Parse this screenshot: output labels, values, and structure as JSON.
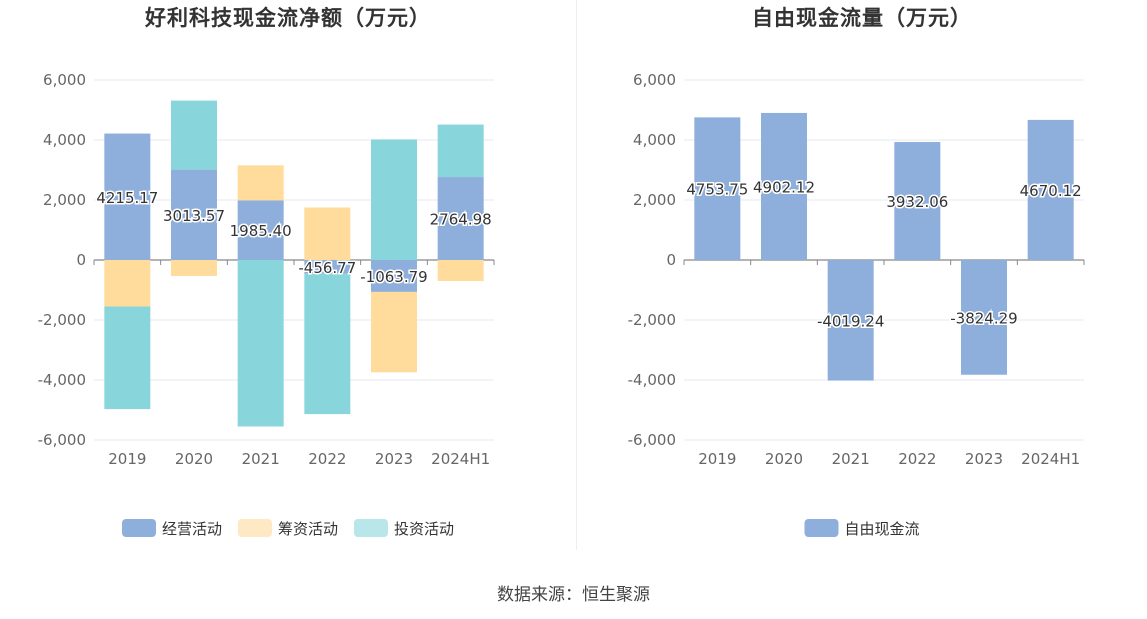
{
  "source_label": "数据来源：恒生聚源",
  "chart_data": [
    {
      "type": "bar",
      "stacked": true,
      "title": "好利科技现金流净额（万元）",
      "categories": [
        "2019",
        "2020",
        "2021",
        "2022",
        "2023",
        "2024H1"
      ],
      "ylim": [
        -6000,
        6000
      ],
      "yticks": [
        6000,
        4000,
        2000,
        0,
        -2000,
        -4000,
        -6000
      ],
      "ytick_labels": [
        "6,000",
        "4,000",
        "2,000",
        "0",
        "-2,000",
        "-4,000",
        "-6,000"
      ],
      "grid": true,
      "legend_position": "bottom",
      "series": [
        {
          "name": "经营活动",
          "color": "#8eaedb",
          "values": [
            4215.17,
            3013.57,
            1985.4,
            -456.77,
            -1063.79,
            2764.98
          ]
        },
        {
          "name": "筹资活动",
          "color": "#ffdb9c",
          "values": [
            -1550,
            -530,
            1170,
            1750,
            -2680,
            -700
          ]
        },
        {
          "name": "投资活动",
          "color": "#88d6db",
          "values": [
            -3420,
            2300,
            -5550,
            -4680,
            4020,
            1750
          ]
        }
      ],
      "data_labels": [
        "4215.17",
        "3013.57",
        "1985.40",
        "-456.77",
        "-1063.79",
        "2764.98"
      ]
    },
    {
      "type": "bar",
      "title": "自由现金流量（万元）",
      "categories": [
        "2019",
        "2020",
        "2021",
        "2022",
        "2023",
        "2024H1"
      ],
      "ylim": [
        -6000,
        6000
      ],
      "yticks": [
        6000,
        4000,
        2000,
        0,
        -2000,
        -4000,
        -6000
      ],
      "ytick_labels": [
        "6,000",
        "4,000",
        "2,000",
        "0",
        "-2,000",
        "-4,000",
        "-6,000"
      ],
      "grid": true,
      "legend_position": "bottom",
      "series": [
        {
          "name": "自由现金流",
          "color": "#8eaedb",
          "values": [
            4753.75,
            4902.12,
            -4019.24,
            3932.06,
            -3824.29,
            4670.12
          ]
        }
      ],
      "data_labels": [
        "4753.75",
        "4902.12",
        "-4019.24",
        "3932.06",
        "-3824.29",
        "4670.12"
      ]
    }
  ]
}
